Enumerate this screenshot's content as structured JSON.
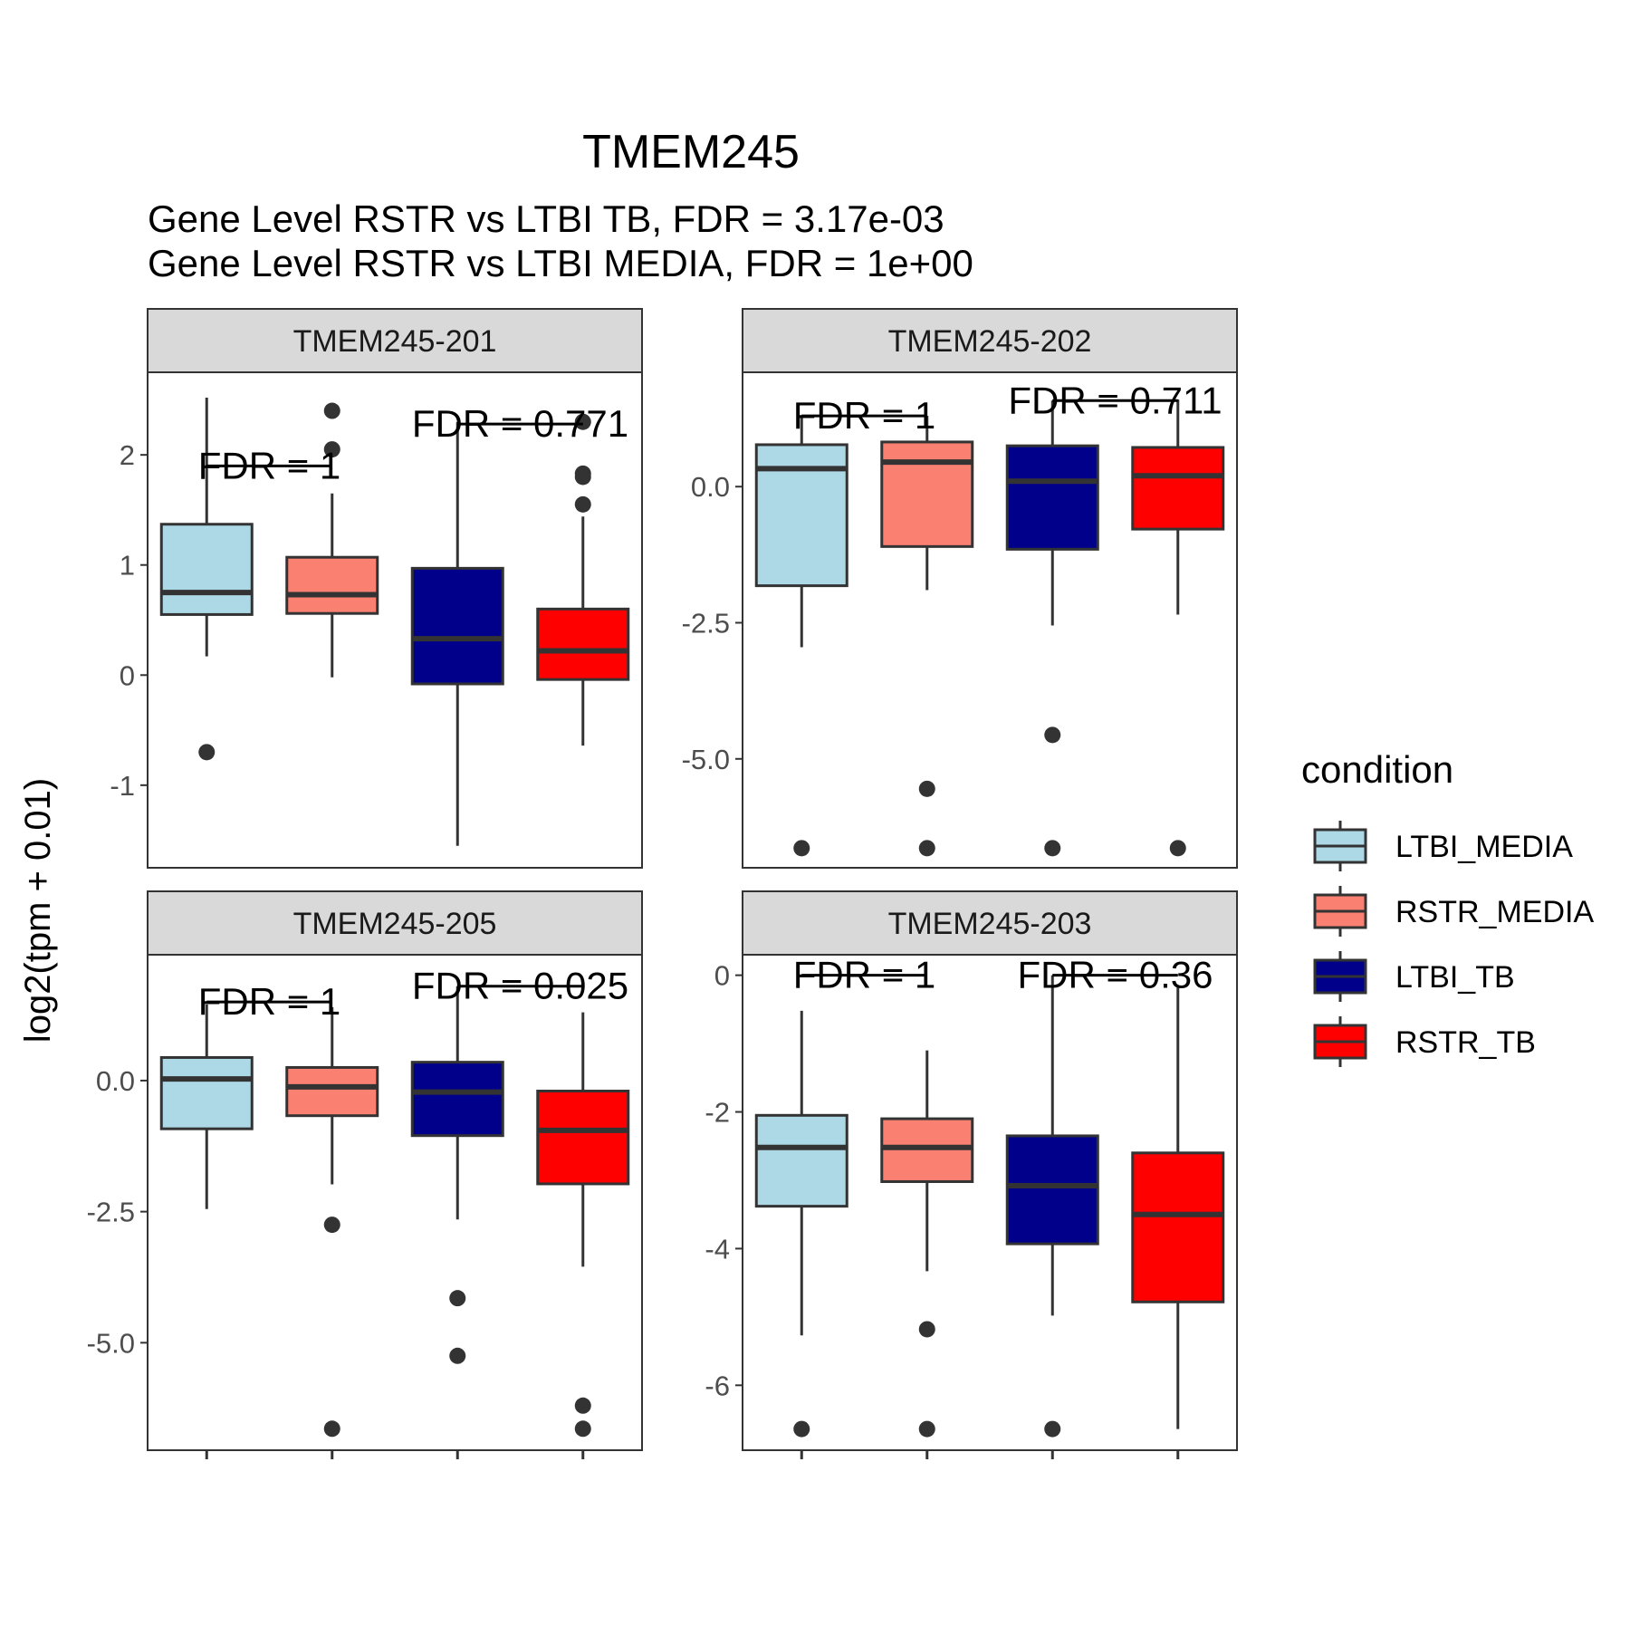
{
  "title": "TMEM245",
  "subtitle_lines": [
    "Gene Level RSTR vs LTBI TB, FDR =  3.17e-03",
    "Gene Level RSTR vs LTBI MEDIA, FDR =  1e+00"
  ],
  "ylabel": "log2(tpm + 0.01)",
  "legend": {
    "title": "condition",
    "items": [
      {
        "label": "LTBI_MEDIA",
        "color": "#add8e6"
      },
      {
        "label": "RSTR_MEDIA",
        "color": "#fa8072"
      },
      {
        "label": "LTBI_TB",
        "color": "#00008b"
      },
      {
        "label": "RSTR_TB",
        "color": "#ff0000"
      }
    ]
  },
  "colors": {
    "strip_bg": "#d9d9d9",
    "outline": "#333333",
    "axis_text": "#4d4d4d"
  },
  "chart_data": [
    {
      "type": "box",
      "panel": "TMEM245-201",
      "ylim": [
        -1.75,
        2.75
      ],
      "yticks": [
        -1,
        0,
        1,
        2
      ],
      "ytick_labels": [
        "-1",
        "0",
        "1",
        "2"
      ],
      "boxes": [
        {
          "group": "LTBI_MEDIA",
          "q1": 0.55,
          "median": 0.75,
          "q3": 1.37,
          "lower": 0.17,
          "upper": 2.52,
          "outliers": [
            -0.7
          ]
        },
        {
          "group": "RSTR_MEDIA",
          "q1": 0.56,
          "median": 0.73,
          "q3": 1.07,
          "lower": -0.02,
          "upper": 1.65,
          "outliers": [
            2.4,
            2.05
          ]
        },
        {
          "group": "LTBI_TB",
          "q1": -0.08,
          "median": 0.33,
          "q3": 0.97,
          "lower": -1.55,
          "upper": 2.3,
          "outliers": []
        },
        {
          "group": "RSTR_TB",
          "q1": -0.04,
          "median": 0.22,
          "q3": 0.6,
          "lower": -0.64,
          "upper": 1.44,
          "outliers": [
            2.3,
            1.83,
            1.8,
            1.55
          ]
        }
      ],
      "comparisons": [
        {
          "label": "FDR =  1",
          "from": 0,
          "to": 1,
          "y": 1.9
        },
        {
          "label": "FDR =  0.771",
          "from": 2,
          "to": 3,
          "y": 2.28
        }
      ]
    },
    {
      "type": "box",
      "panel": "TMEM245-202",
      "ylim": [
        -7.0,
        2.1
      ],
      "yticks": [
        -5.0,
        -2.5,
        0.0
      ],
      "ytick_labels": [
        "-5.0",
        "-2.5",
        "0.0"
      ],
      "boxes": [
        {
          "group": "LTBI_MEDIA",
          "q1": -1.82,
          "median": 0.33,
          "q3": 0.77,
          "lower": -2.95,
          "upper": 1.3,
          "outliers": [
            -6.64
          ]
        },
        {
          "group": "RSTR_MEDIA",
          "q1": -1.1,
          "median": 0.45,
          "q3": 0.82,
          "lower": -1.9,
          "upper": 1.3,
          "outliers": [
            -5.55,
            -6.64
          ]
        },
        {
          "group": "LTBI_TB",
          "q1": -1.15,
          "median": 0.1,
          "q3": 0.75,
          "lower": -2.55,
          "upper": 1.58,
          "outliers": [
            -4.56,
            -6.64
          ]
        },
        {
          "group": "RSTR_TB",
          "q1": -0.78,
          "median": 0.2,
          "q3": 0.72,
          "lower": -2.35,
          "upper": 1.6,
          "outliers": [
            -6.64
          ]
        }
      ],
      "comparisons": [
        {
          "label": "FDR =  1",
          "from": 0,
          "to": 1,
          "y": 1.3
        },
        {
          "label": "FDR =  0.711",
          "from": 2,
          "to": 3,
          "y": 1.58
        }
      ]
    },
    {
      "type": "box",
      "panel": "TMEM245-205",
      "ylim": [
        -7.05,
        2.4
      ],
      "yticks": [
        -5.0,
        -2.5,
        0.0
      ],
      "ytick_labels": [
        "-5.0",
        "-2.5",
        "0.0"
      ],
      "boxes": [
        {
          "group": "LTBI_MEDIA",
          "q1": -0.92,
          "median": 0.03,
          "q3": 0.44,
          "lower": -2.45,
          "upper": 1.45,
          "outliers": []
        },
        {
          "group": "RSTR_MEDIA",
          "q1": -0.67,
          "median": -0.12,
          "q3": 0.25,
          "lower": -1.98,
          "upper": 1.4,
          "outliers": [
            -2.75,
            -6.64
          ]
        },
        {
          "group": "LTBI_TB",
          "q1": -1.05,
          "median": -0.22,
          "q3": 0.35,
          "lower": -2.65,
          "upper": 1.8,
          "outliers": [
            -4.15,
            -5.25
          ]
        },
        {
          "group": "RSTR_TB",
          "q1": -1.97,
          "median": -0.95,
          "q3": -0.2,
          "lower": -3.55,
          "upper": 1.3,
          "outliers": [
            -6.2,
            -6.64
          ]
        }
      ],
      "comparisons": [
        {
          "label": "FDR =  1",
          "from": 0,
          "to": 1,
          "y": 1.5
        },
        {
          "label": "FDR =  0.025",
          "from": 2,
          "to": 3,
          "y": 1.8
        }
      ]
    },
    {
      "type": "box",
      "panel": "TMEM245-203",
      "ylim": [
        -6.95,
        0.3
      ],
      "yticks": [
        -6,
        -4,
        -2,
        0
      ],
      "ytick_labels": [
        "-6",
        "-4",
        "-2",
        "0"
      ],
      "boxes": [
        {
          "group": "LTBI_MEDIA",
          "q1": -3.38,
          "median": -2.52,
          "q3": -2.05,
          "lower": -5.27,
          "upper": -0.52,
          "outliers": [
            -6.64
          ]
        },
        {
          "group": "RSTR_MEDIA",
          "q1": -3.02,
          "median": -2.52,
          "q3": -2.1,
          "lower": -4.33,
          "upper": -1.1,
          "outliers": [
            -5.18,
            -6.64
          ]
        },
        {
          "group": "LTBI_TB",
          "q1": -3.93,
          "median": -3.08,
          "q3": -2.35,
          "lower": -4.98,
          "upper": 0.0,
          "outliers": [
            -6.64
          ]
        },
        {
          "group": "RSTR_TB",
          "q1": -4.78,
          "median": -3.5,
          "q3": -2.6,
          "lower": -6.64,
          "upper": -0.18,
          "outliers": []
        }
      ],
      "comparisons": [
        {
          "label": "FDR =  1",
          "from": 0,
          "to": 1,
          "y": 0.0
        },
        {
          "label": "FDR =  0.36",
          "from": 2,
          "to": 3,
          "y": 0.0
        }
      ]
    }
  ]
}
